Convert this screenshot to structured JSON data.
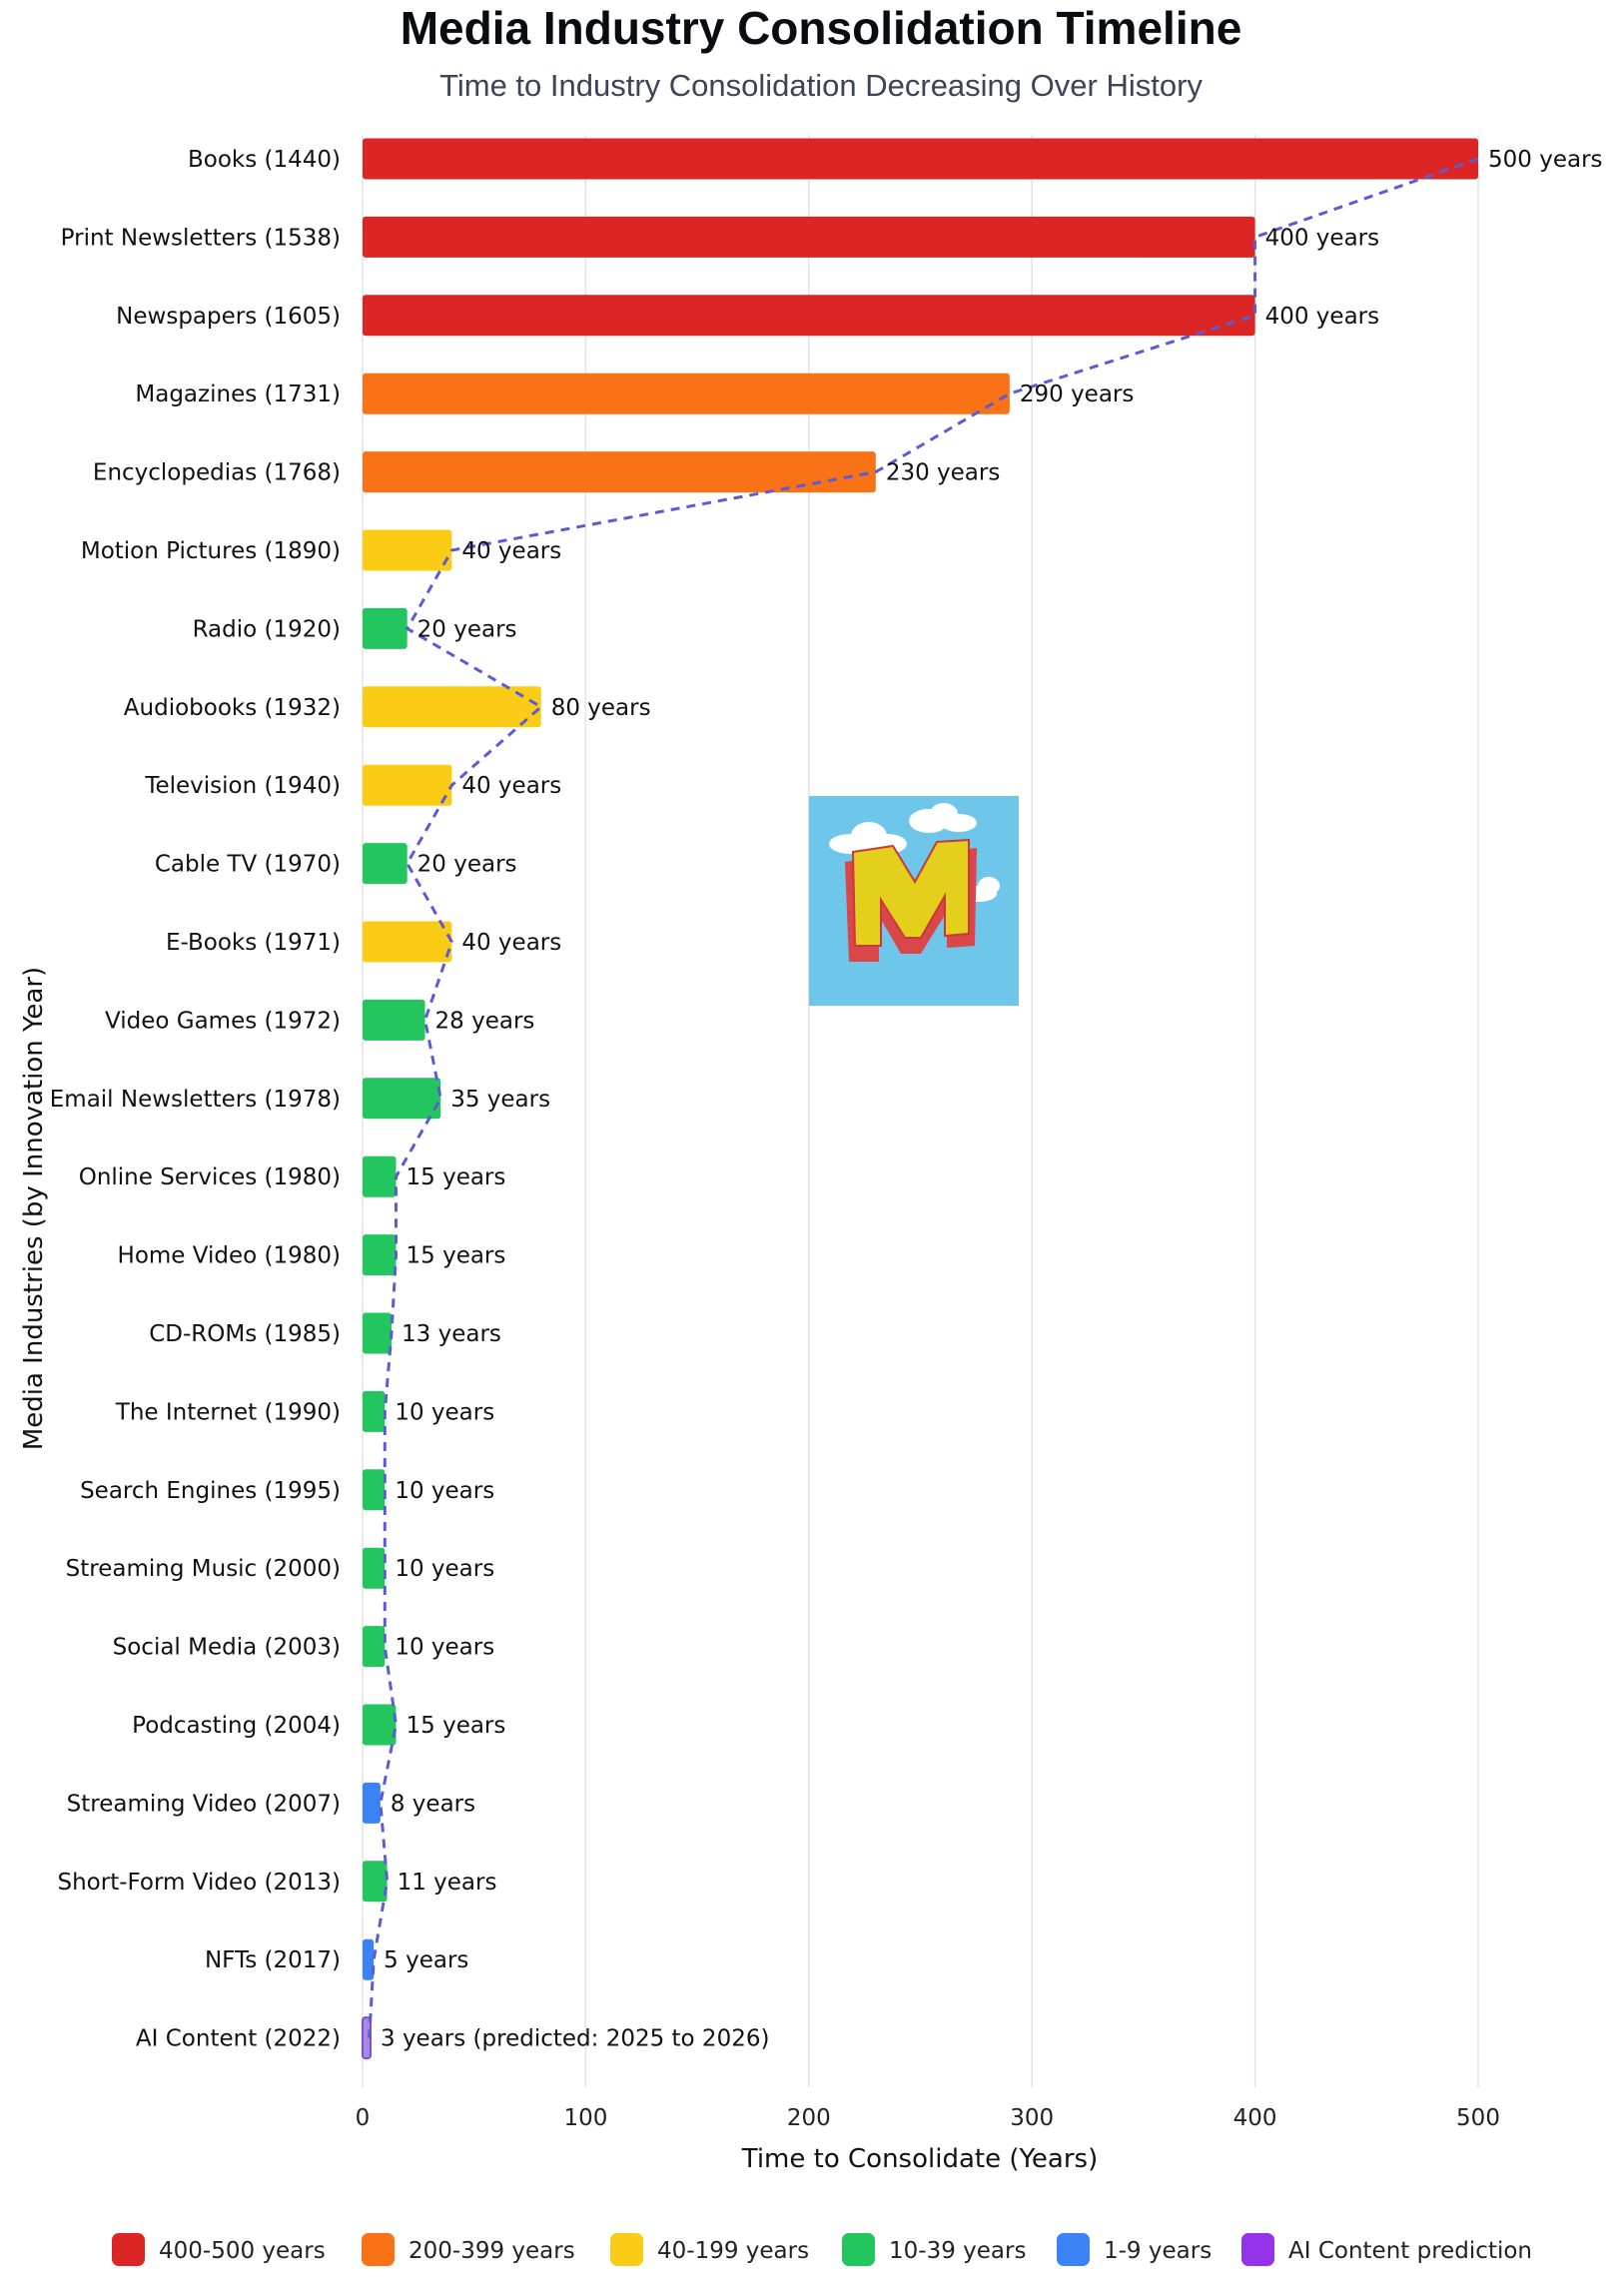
{
  "chart_data": {
    "type": "bar",
    "orientation": "horizontal",
    "title": "Media Industry Consolidation Timeline",
    "subtitle": "Time to Industry Consolidation Decreasing Over History",
    "xlabel": "Time to Consolidate (Years)",
    "ylabel": "Media Industries (by Innovation Year)",
    "xlim": [
      0,
      500
    ],
    "xticks": [
      0,
      100,
      200,
      300,
      400,
      500
    ],
    "grid": true,
    "legend_position": "bottom",
    "trend_line": "dashed",
    "categories": [
      "Books (1440)",
      "Print Newsletters (1538)",
      "Newspapers (1605)",
      "Magazines (1731)",
      "Encyclopedias (1768)",
      "Motion Pictures (1890)",
      "Radio (1920)",
      "Audiobooks (1932)",
      "Television (1940)",
      "Cable TV (1970)",
      "E-Books (1971)",
      "Video Games (1972)",
      "Email Newsletters (1978)",
      "Online Services (1980)",
      "Home Video (1980)",
      "CD-ROMs (1985)",
      "The Internet (1990)",
      "Search Engines (1995)",
      "Streaming Music (2000)",
      "Social Media (2003)",
      "Podcasting (2004)",
      "Streaming Video (2007)",
      "Short-Form Video (2013)",
      "NFTs (2017)",
      "AI Content (2022)"
    ],
    "values": [
      500,
      400,
      400,
      290,
      230,
      40,
      20,
      80,
      40,
      20,
      40,
      28,
      35,
      15,
      15,
      13,
      10,
      10,
      10,
      10,
      15,
      8,
      11,
      5,
      3
    ],
    "value_labels": [
      "500 years",
      "400 years",
      "400 years",
      "290 years",
      "230 years",
      "40 years",
      "20 years",
      "80 years",
      "40 years",
      "20 years",
      "40 years",
      "28 years",
      "35 years",
      "15 years",
      "15 years",
      "13 years",
      "10 years",
      "10 years",
      "10 years",
      "10 years",
      "15 years",
      "8 years",
      "11 years",
      "5 years",
      "3 years (predicted: 2025 to 2026)"
    ],
    "groups": [
      "g400",
      "g400",
      "g400",
      "g200",
      "g200",
      "g40",
      "g10",
      "g40",
      "g40",
      "g10",
      "g40",
      "g10",
      "g10",
      "g10",
      "g10",
      "g10",
      "g10",
      "g10",
      "g10",
      "g10",
      "g10",
      "g1",
      "g10",
      "g1",
      "ai"
    ],
    "legend": [
      {
        "key": "g400",
        "label": "400-500 years",
        "color": "#dc2626"
      },
      {
        "key": "g200",
        "label": "200-399 years",
        "color": "#f97316"
      },
      {
        "key": "g40",
        "label": "40-199 years",
        "color": "#facc15"
      },
      {
        "key": "g10",
        "label": "10-39 years",
        "color": "#22c55e"
      },
      {
        "key": "g1",
        "label": "1-9 years",
        "color": "#3b82f6"
      },
      {
        "key": "ai",
        "label": "AI Content prediction",
        "color": "#9333ea"
      }
    ],
    "trend_color": "#5b5bd6"
  },
  "logo": {
    "icon": "m-letter-logo-icon",
    "sky_color": "#6ec6ea",
    "letter_color": "#e3cf1c",
    "shadow_color": "#d9474b"
  }
}
